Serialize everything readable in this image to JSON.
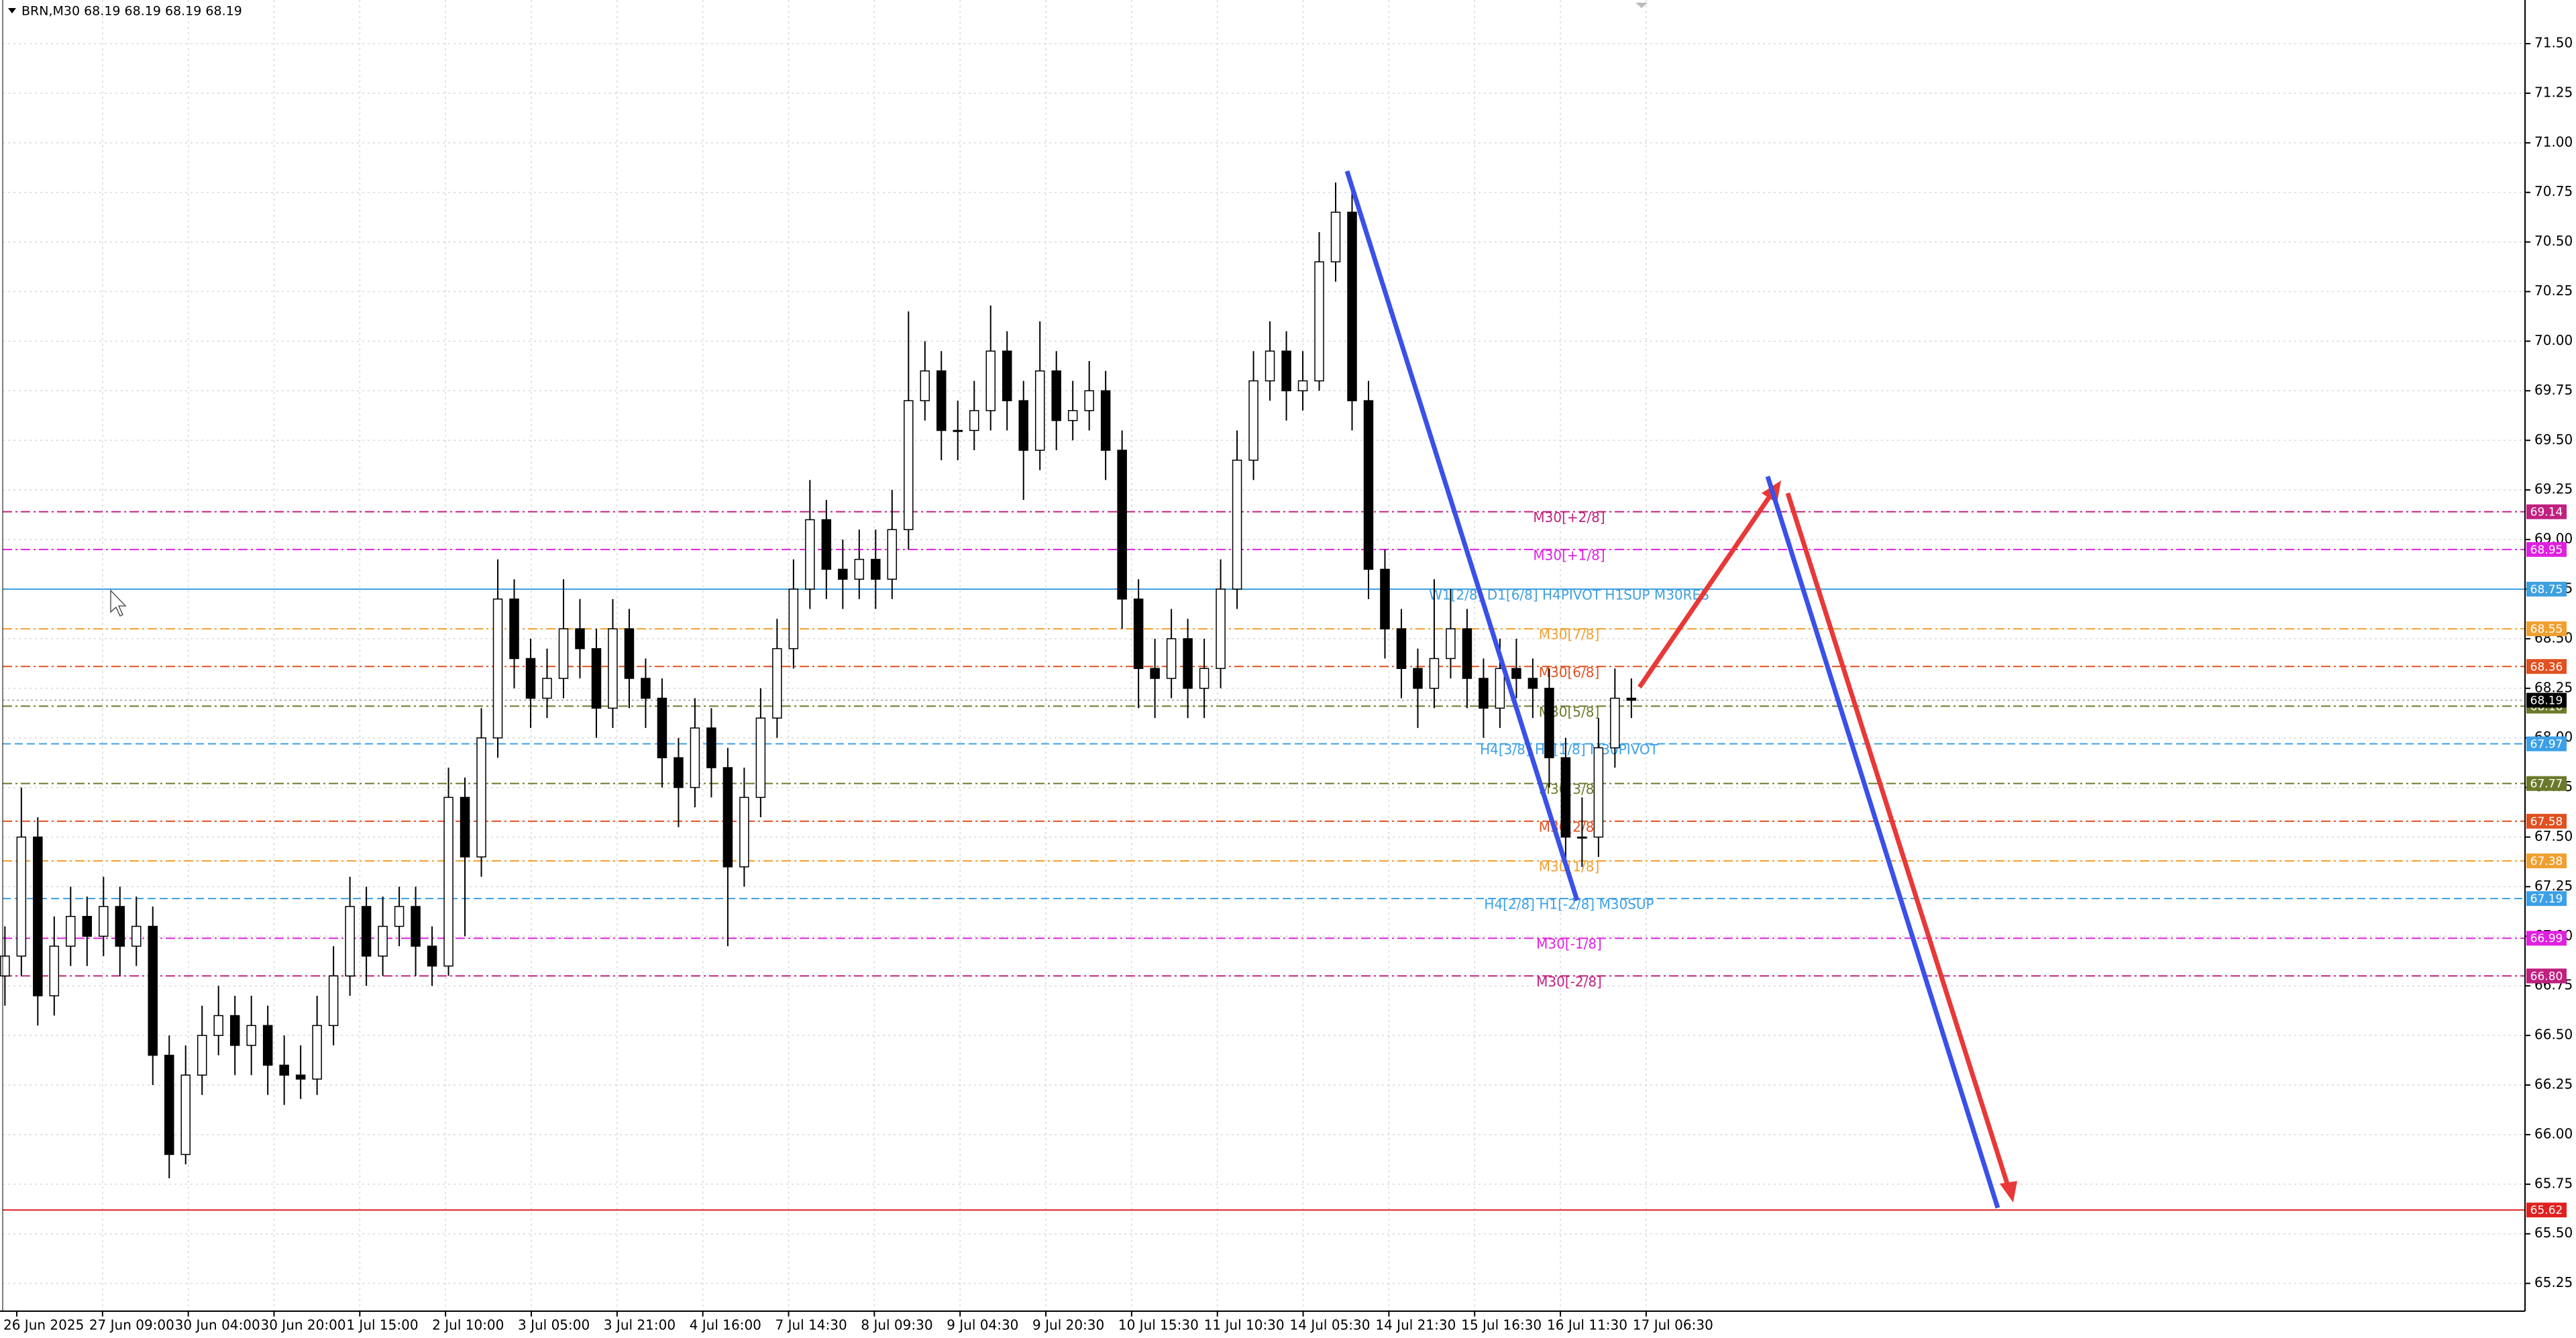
{
  "chart_data": {
    "type": "candlestick",
    "title": "BRN,M30  68.19 68.19 68.19 68.19",
    "ylim": [
      65.11,
      71.72
    ],
    "yticks": [
      65.25,
      {
        "value": 65.5,
        "label": "65.50"
      },
      65.75,
      {
        "value": 66,
        "label": "66.00"
      },
      66.25,
      {
        "value": 66.5,
        "label": "66.50"
      },
      66.75,
      {
        "value": 67,
        "label": "67.00"
      },
      67.25,
      {
        "value": 67.5,
        "label": "67.50"
      },
      67.75,
      {
        "value": 68,
        "label": "68.00"
      },
      68.25,
      {
        "value": 68.5,
        "label": "68.50"
      },
      68.75,
      {
        "value": 69,
        "label": "69.00"
      },
      69.25,
      {
        "value": 69.5,
        "label": "69.50"
      },
      69.75,
      {
        "value": 70,
        "label": "70.00"
      },
      70.25,
      {
        "value": 70.5,
        "label": "70.50"
      },
      70.75,
      {
        "value": 71,
        "label": "71.00"
      },
      71.25,
      {
        "value": 71.5,
        "label": "71.50"
      }
    ],
    "grid": true,
    "x_labels": [
      "26 Jun 2025",
      "27 Jun 09:00",
      "30 Jun 04:00",
      "30 Jun 20:00",
      "1 Jul 15:00",
      "2 Jul 10:00",
      "3 Jul 05:00",
      "3 Jul 21:00",
      "4 Jul 16:00",
      "7 Jul 14:30",
      "8 Jul 09:30",
      "9 Jul 04:30",
      "9 Jul 20:30",
      "10 Jul 15:30",
      "11 Jul 10:30",
      "14 Jul 05:30",
      "14 Jul 21:30",
      "15 Jul 16:30",
      "16 Jul 11:30",
      "17 Jul 06:30"
    ],
    "open": [
      66.8,
      66.9,
      67.5,
      66.7,
      66.95,
      67.1,
      67.0,
      67.15,
      66.95,
      67.05,
      66.4,
      65.9,
      66.3,
      66.5,
      66.6,
      66.45,
      66.55,
      66.35,
      66.3,
      66.28,
      66.55,
      66.8,
      67.15,
      66.9,
      67.05,
      67.15,
      66.95,
      66.85,
      67.7,
      67.4,
      68.0,
      68.7,
      68.4,
      68.2,
      68.3,
      68.55,
      68.45,
      68.15,
      68.55,
      68.3,
      68.2,
      67.9,
      67.75,
      68.05,
      67.85,
      67.35,
      67.7,
      68.1,
      68.45,
      68.75,
      69.1,
      68.85,
      68.8,
      68.9,
      68.8,
      69.05,
      69.7,
      69.85,
      69.55,
      69.55,
      69.65,
      69.95,
      69.7,
      69.45,
      69.85,
      69.6,
      69.65,
      69.75,
      69.45,
      68.7,
      68.35,
      68.3,
      68.5,
      68.25,
      68.35,
      68.75,
      69.4,
      69.8,
      69.95,
      69.75,
      69.8,
      70.4,
      70.65,
      69.7,
      68.85,
      68.55,
      68.35,
      68.25,
      68.4,
      68.55,
      68.3,
      68.15,
      68.35,
      68.3,
      68.25,
      67.9,
      67.5,
      67.5,
      67.95,
      68.2
    ],
    "high": [
      67.05,
      67.75,
      67.6,
      67.1,
      67.25,
      67.2,
      67.3,
      67.25,
      67.2,
      67.15,
      66.5,
      66.45,
      66.65,
      66.75,
      66.7,
      66.7,
      66.65,
      66.5,
      66.45,
      66.7,
      66.95,
      67.3,
      67.25,
      67.2,
      67.25,
      67.25,
      67.05,
      67.85,
      67.8,
      68.15,
      68.9,
      68.8,
      68.5,
      68.45,
      68.8,
      68.7,
      68.55,
      68.7,
      68.65,
      68.4,
      68.3,
      68.0,
      68.2,
      68.15,
      67.95,
      67.85,
      68.25,
      68.6,
      68.9,
      69.3,
      69.2,
      69.0,
      69.05,
      69.05,
      69.25,
      70.15,
      70.0,
      69.95,
      69.7,
      69.8,
      70.18,
      70.05,
      69.8,
      70.1,
      69.95,
      69.8,
      69.9,
      69.85,
      69.55,
      68.8,
      68.5,
      68.65,
      68.6,
      68.5,
      68.9,
      69.55,
      69.95,
      70.1,
      70.05,
      69.95,
      70.55,
      70.8,
      70.75,
      69.8,
      68.95,
      68.65,
      68.45,
      68.8,
      68.75,
      68.65,
      68.4,
      68.5,
      68.5,
      68.4,
      68.35,
      68.0,
      67.7,
      68.1,
      68.35,
      68.3
    ],
    "low": [
      66.65,
      66.8,
      66.55,
      66.6,
      66.85,
      66.85,
      66.9,
      66.8,
      66.85,
      66.25,
      65.78,
      65.85,
      66.2,
      66.4,
      66.3,
      66.3,
      66.2,
      66.15,
      66.18,
      66.2,
      66.45,
      66.7,
      66.75,
      66.8,
      66.95,
      66.8,
      66.75,
      66.8,
      67.0,
      67.3,
      67.9,
      68.25,
      68.05,
      68.1,
      68.2,
      68.3,
      68.0,
      68.05,
      68.15,
      68.05,
      67.75,
      67.55,
      67.65,
      67.7,
      66.95,
      67.25,
      67.6,
      68.0,
      68.35,
      68.65,
      68.7,
      68.65,
      68.7,
      68.65,
      68.7,
      68.95,
      69.6,
      69.4,
      69.4,
      69.45,
      69.55,
      69.55,
      69.2,
      69.35,
      69.45,
      69.5,
      69.55,
      69.3,
      68.55,
      68.15,
      68.1,
      68.2,
      68.1,
      68.1,
      68.25,
      68.65,
      69.3,
      69.7,
      69.6,
      69.65,
      69.75,
      70.3,
      69.55,
      68.7,
      68.4,
      68.2,
      68.05,
      68.15,
      68.3,
      68.15,
      68.0,
      68.05,
      68.2,
      68.1,
      67.75,
      67.35,
      67.35,
      67.4,
      67.85,
      68.1
    ],
    "close": [
      66.9,
      67.5,
      66.7,
      66.95,
      67.1,
      67.0,
      67.15,
      66.95,
      67.05,
      66.4,
      65.9,
      66.3,
      66.5,
      66.6,
      66.45,
      66.55,
      66.35,
      66.3,
      66.28,
      66.55,
      66.8,
      67.15,
      66.9,
      67.05,
      67.15,
      66.95,
      66.85,
      67.7,
      67.4,
      68.0,
      68.7,
      68.4,
      68.2,
      68.3,
      68.55,
      68.45,
      68.15,
      68.55,
      68.3,
      68.2,
      67.9,
      67.75,
      68.05,
      67.85,
      67.35,
      67.7,
      68.1,
      68.45,
      68.75,
      69.1,
      68.85,
      68.8,
      68.9,
      68.8,
      69.05,
      69.7,
      69.85,
      69.55,
      69.55,
      69.65,
      69.95,
      69.7,
      69.45,
      69.85,
      69.6,
      69.65,
      69.75,
      69.45,
      68.7,
      68.35,
      68.3,
      68.5,
      68.25,
      68.35,
      68.75,
      69.4,
      69.8,
      69.95,
      69.75,
      69.8,
      70.4,
      70.65,
      69.7,
      68.85,
      68.55,
      68.35,
      68.25,
      68.4,
      68.55,
      68.3,
      68.15,
      68.35,
      68.3,
      68.25,
      67.9,
      67.5,
      67.5,
      67.95,
      68.2,
      68.19
    ],
    "levels": [
      {
        "value": 69.14,
        "label": "M30[+2/8]",
        "color": "#c0207f",
        "dash": "dashdot"
      },
      {
        "value": 68.95,
        "label": "M30[+1/8]",
        "color": "#e020e0",
        "dash": "dashdot"
      },
      {
        "value": 68.75,
        "label": "W1[2/8] D1[6/8] H4PIVOT H1SUP M30RES",
        "color": "#3fa0e0",
        "dash": "solid"
      },
      {
        "value": 68.55,
        "label": "M30[7/8]",
        "color": "#f0a030",
        "dash": "dashdot"
      },
      {
        "value": 68.36,
        "label": "M30[6/8]",
        "color": "#e05020",
        "dash": "dashdot"
      },
      {
        "value": 68.16,
        "label": "M30[5/8]",
        "color": "#6b7a2a",
        "dash": "dashdot"
      },
      {
        "value": 67.97,
        "label": "H4[3/8] H1[1/8] M30PIVOT",
        "color": "#3ca0e8",
        "dash": "dash"
      },
      {
        "value": 67.77,
        "label": "M30[3/8]",
        "color": "#6b7a2a",
        "dash": "dashdot"
      },
      {
        "value": 67.58,
        "label": "M30[2/8]",
        "color": "#e05020",
        "dash": "dashdot"
      },
      {
        "value": 67.38,
        "label": "M30[1/8]",
        "color": "#f0a030",
        "dash": "dashdot"
      },
      {
        "value": 67.19,
        "label": "H4[2/8] H1[-2/8] M30SUP",
        "color": "#3ca0e8",
        "dash": "dash"
      },
      {
        "value": 66.99,
        "label": "M30[-1/8]",
        "color": "#e020e0",
        "dash": "dashdot"
      },
      {
        "value": 66.8,
        "value_label": "66.80",
        "label": "M30[-2/8]",
        "color": "#c0207f",
        "dash": "dashdot"
      },
      {
        "value": 65.62,
        "color": "#e02020",
        "dash": "solid"
      }
    ],
    "current_price": 68.19,
    "current_color": "#000000",
    "up_color": "#ffffff",
    "down_color": "#000000"
  }
}
